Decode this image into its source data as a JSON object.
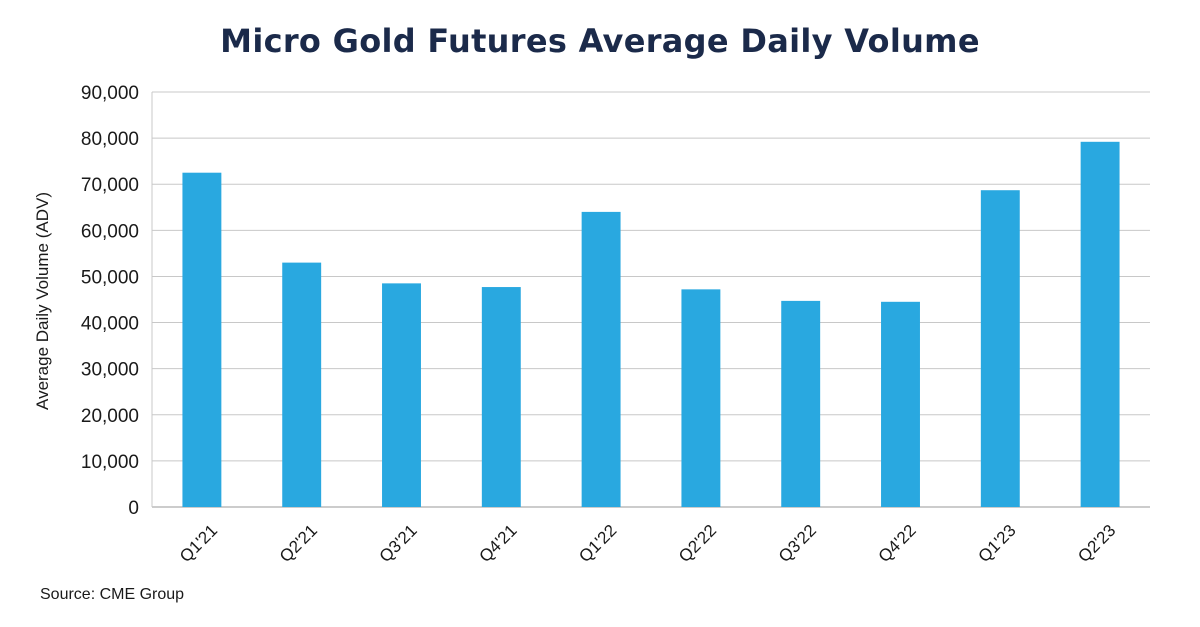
{
  "chart_data": {
    "type": "bar",
    "title": "Micro Gold Futures Average Daily Volume",
    "ylabel": "Average Daily Volume (ADV)",
    "xlabel": "",
    "categories": [
      "Q1'21",
      "Q2'21",
      "Q3'21",
      "Q4'21",
      "Q1'22",
      "Q2'22",
      "Q3'22",
      "Q4'22",
      "Q1'23",
      "Q2'23"
    ],
    "values": [
      72500,
      53000,
      48500,
      47700,
      64000,
      47200,
      44700,
      44500,
      68700,
      79200
    ],
    "ylim": [
      0,
      90000
    ],
    "yticks": [
      "0",
      "10,000",
      "20,000",
      "30,000",
      "40,000",
      "50,000",
      "60,000",
      "70,000",
      "80,000",
      "90,000"
    ],
    "ytick_values": [
      0,
      10000,
      20000,
      30000,
      40000,
      50000,
      60000,
      70000,
      80000,
      90000
    ],
    "grid": true,
    "bar_color": "#29a8e0"
  },
  "source": "Source: CME Group"
}
